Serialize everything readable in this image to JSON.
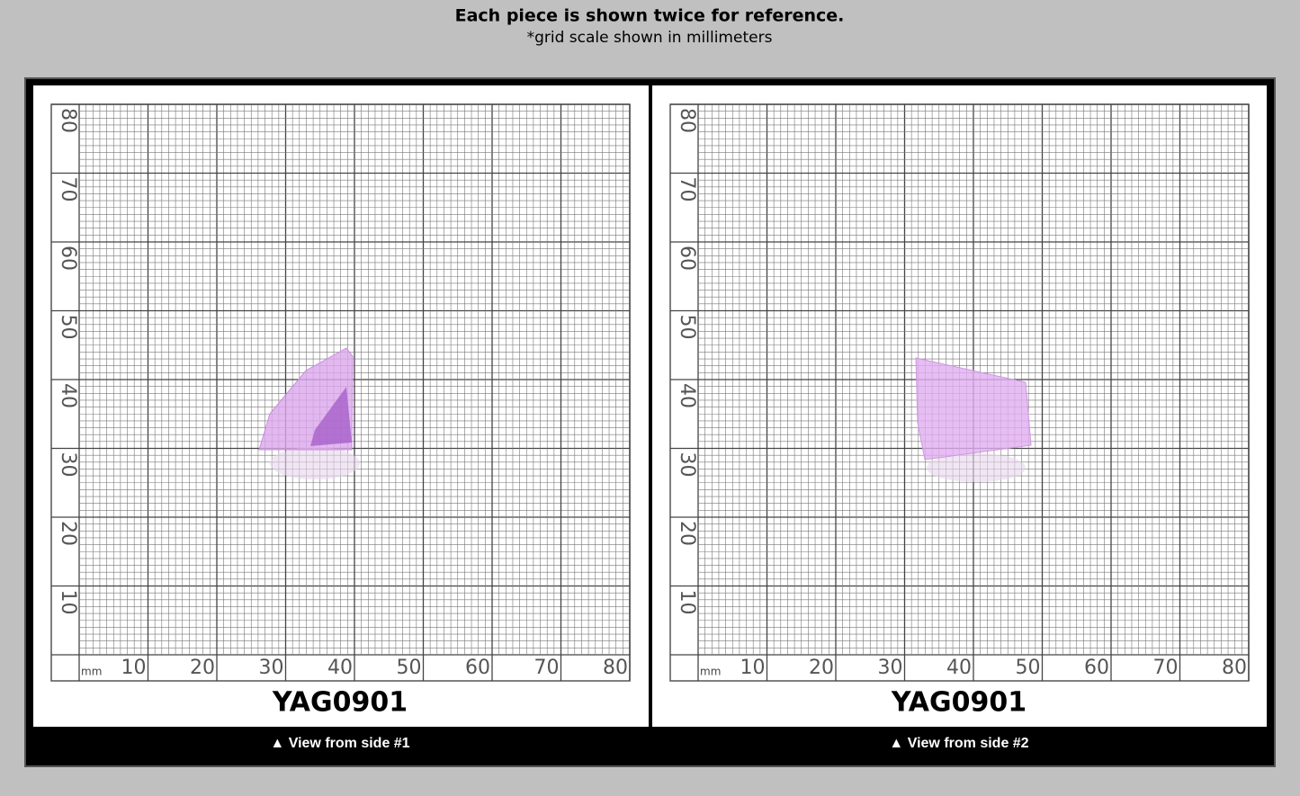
{
  "header": {
    "title": "Each piece is shown twice for reference.",
    "subtitle": "*grid scale shown in millimeters"
  },
  "grid": {
    "unit": "mm",
    "x_labels": [
      "10",
      "20",
      "30",
      "40",
      "50",
      "60",
      "70",
      "80"
    ],
    "y_labels": [
      "10",
      "20",
      "30",
      "40",
      "50",
      "60",
      "70",
      "80"
    ]
  },
  "panels": [
    {
      "label": "YAG0901",
      "caption": "▲ View from side #1"
    },
    {
      "label": "YAG0901",
      "caption": "▲ View from side #2"
    }
  ]
}
